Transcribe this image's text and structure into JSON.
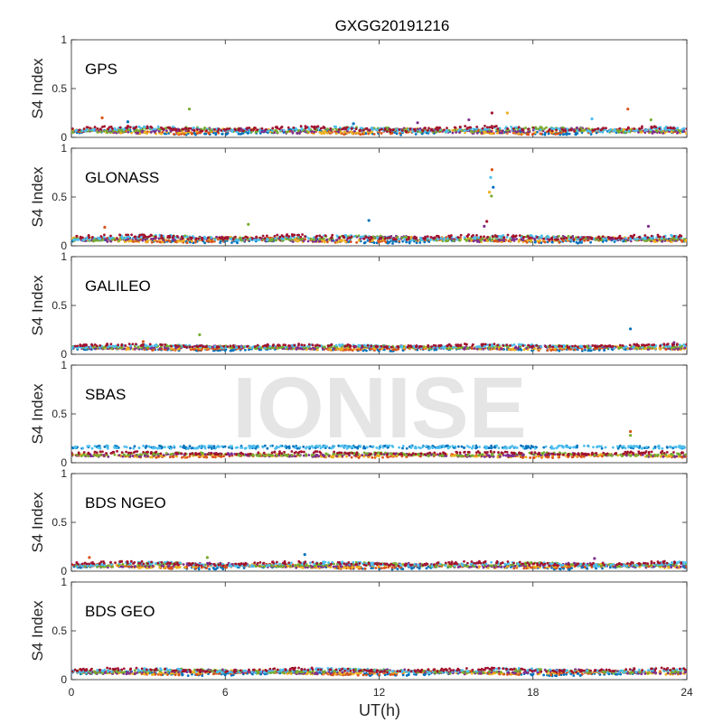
{
  "title": "GXGG20191216",
  "watermark": "IONISE",
  "colors": [
    "#0072BD",
    "#D95319",
    "#EDB120",
    "#7E2F8E",
    "#77AC30",
    "#4DBEEE",
    "#A2142F"
  ],
  "chart_data": {
    "type": "scatter",
    "title": "GXGG20191216",
    "xlabel": "UT(h)",
    "ylabel": "S4 Index",
    "xlim": [
      0,
      24
    ],
    "ylim": [
      0,
      1
    ],
    "xticks": [
      0,
      6,
      12,
      18,
      24
    ],
    "yticks": [
      0,
      0.5,
      1
    ],
    "xtick_labels": [
      "0",
      "6",
      "12",
      "18",
      "24"
    ],
    "ytick_labels": [
      "0",
      "0.5",
      "1"
    ],
    "grid": false,
    "legend": "none",
    "panels": [
      {
        "name": "GPS",
        "baseline": 0.07,
        "spread": 0.03,
        "spikes": [
          {
            "x": 1.2,
            "y": 0.2
          },
          {
            "x": 4.6,
            "y": 0.29
          },
          {
            "x": 2.2,
            "y": 0.16
          },
          {
            "x": 15.5,
            "y": 0.18
          },
          {
            "x": 16.4,
            "y": 0.25
          },
          {
            "x": 17.0,
            "y": 0.25
          },
          {
            "x": 20.3,
            "y": 0.19
          },
          {
            "x": 21.7,
            "y": 0.29
          },
          {
            "x": 22.6,
            "y": 0.18
          },
          {
            "x": 11.0,
            "y": 0.14
          },
          {
            "x": 13.5,
            "y": 0.15
          }
        ]
      },
      {
        "name": "GLONASS",
        "baseline": 0.07,
        "spread": 0.03,
        "spikes": [
          {
            "x": 1.3,
            "y": 0.19
          },
          {
            "x": 6.9,
            "y": 0.22
          },
          {
            "x": 11.6,
            "y": 0.26
          },
          {
            "x": 16.1,
            "y": 0.2
          },
          {
            "x": 16.2,
            "y": 0.25
          },
          {
            "x": 16.3,
            "y": 0.55
          },
          {
            "x": 16.35,
            "y": 0.7
          },
          {
            "x": 16.4,
            "y": 0.78
          },
          {
            "x": 16.38,
            "y": 0.51
          },
          {
            "x": 16.45,
            "y": 0.6
          },
          {
            "x": 22.5,
            "y": 0.2
          }
        ]
      },
      {
        "name": "GALILEO",
        "baseline": 0.07,
        "spread": 0.02,
        "spikes": [
          {
            "x": 2.8,
            "y": 0.13
          },
          {
            "x": 5.0,
            "y": 0.2
          },
          {
            "x": 21.8,
            "y": 0.26
          },
          {
            "x": 23.5,
            "y": 0.12
          }
        ]
      },
      {
        "name": "SBAS",
        "baseline": 0.08,
        "spread": 0.02,
        "upper_band": 0.16,
        "spikes": [
          {
            "x": 21.8,
            "y": 0.32
          },
          {
            "x": 21.8,
            "y": 0.28
          }
        ]
      },
      {
        "name": "BDS NGEO",
        "baseline": 0.06,
        "spread": 0.025,
        "spikes": [
          {
            "x": 0.7,
            "y": 0.14
          },
          {
            "x": 5.3,
            "y": 0.14
          },
          {
            "x": 9.1,
            "y": 0.17
          },
          {
            "x": 20.4,
            "y": 0.13
          }
        ]
      },
      {
        "name": "BDS GEO",
        "baseline": 0.08,
        "spread": 0.025,
        "spikes": []
      }
    ]
  }
}
